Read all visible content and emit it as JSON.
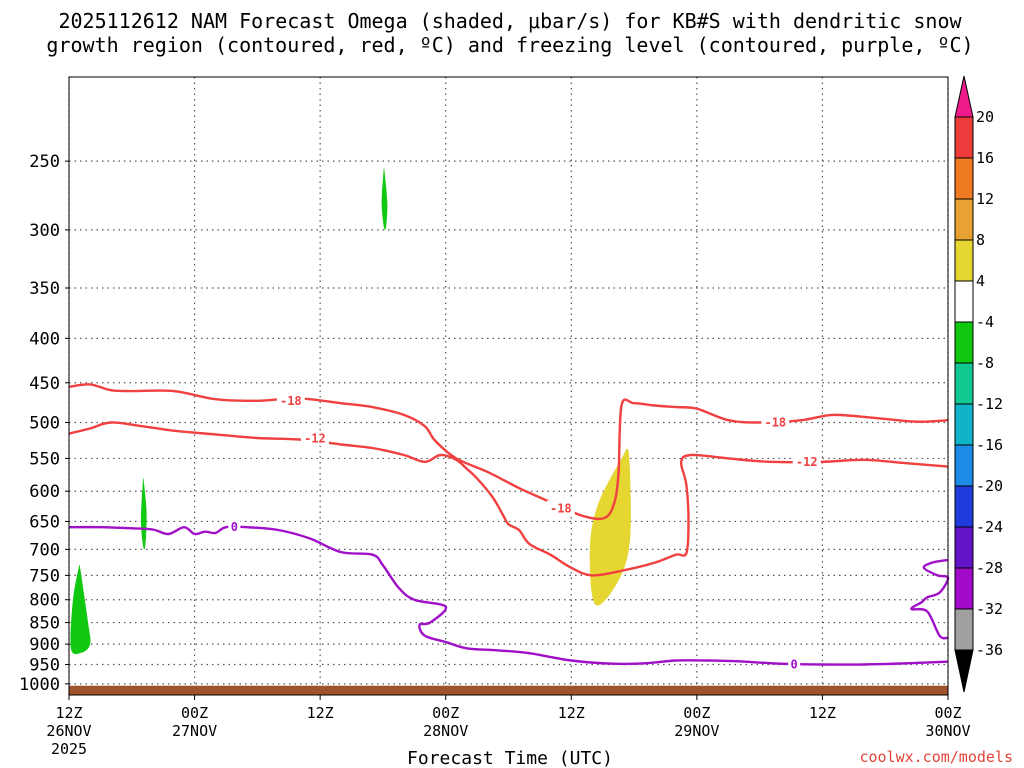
{
  "chart_data": {
    "type": "contour",
    "title_lines": [
      "2025112612 NAM Forecast Omega (shaded, μbar/s) for KB#S with dendritic snow",
      "growth region (contoured, red, ºC) and freezing level (contoured, purple, ºC)"
    ],
    "xlabel": "Forecast Time (UTC)",
    "ylabel": "",
    "y_axis": {
      "ticks": [
        250,
        300,
        350,
        400,
        450,
        500,
        550,
        600,
        650,
        700,
        750,
        800,
        850,
        900,
        950,
        1000
      ],
      "labels": [
        "250",
        "300",
        "350",
        "400",
        "450",
        "500",
        "550",
        "600",
        "650",
        "700",
        "750",
        "800",
        "850",
        "900",
        "950",
        "1000"
      ],
      "scale": "log-pressure",
      "inverted": true,
      "range": [
        200,
        1030
      ]
    },
    "x_axis": {
      "range_hours": [
        0,
        84
      ],
      "ticks": [
        {
          "hour": 0,
          "lines": [
            "12Z",
            "26NOV",
            "2025"
          ]
        },
        {
          "hour": 12,
          "lines": [
            "00Z",
            "27NOV"
          ]
        },
        {
          "hour": 24,
          "lines": [
            "12Z"
          ]
        },
        {
          "hour": 36,
          "lines": [
            "00Z",
            "28NOV"
          ]
        },
        {
          "hour": 48,
          "lines": [
            "12Z"
          ]
        },
        {
          "hour": 60,
          "lines": [
            "00Z",
            "29NOV"
          ]
        },
        {
          "hour": 72,
          "lines": [
            "12Z"
          ]
        },
        {
          "hour": 84,
          "lines": [
            "00Z",
            "30NOV"
          ]
        }
      ]
    },
    "grid": true,
    "colorbar": {
      "labels": [
        "20",
        "16",
        "12",
        "8",
        "4",
        "-4",
        "-8",
        "-12",
        "-16",
        "-20",
        "-24",
        "-28",
        "-32",
        "-36"
      ],
      "colors": [
        "#ee1a8c",
        "#ee3b3b",
        "#ef7a22",
        "#e8a232",
        "#e6d632",
        "#ffffff",
        "#10c810",
        "#10c890",
        "#10b4c8",
        "#1e8ce6",
        "#1e3cdc",
        "#6414c8",
        "#a00ac8",
        "#a0a0a0",
        "#000000"
      ]
    },
    "omega_regions": [
      {
        "color": "#10c810",
        "label": "-4 to -8",
        "points": [
          [
            30.1,
            255
          ],
          [
            30.4,
            280
          ],
          [
            30.2,
            300
          ],
          [
            29.9,
            280
          ]
        ]
      },
      {
        "color": "#10c810",
        "label": "-4 to -8",
        "points": [
          [
            7.1,
            580
          ],
          [
            7.4,
            640
          ],
          [
            7.2,
            700
          ],
          [
            6.9,
            650
          ]
        ]
      },
      {
        "color": "#10c810",
        "label": "-4 to -8",
        "points": [
          [
            1.0,
            730
          ],
          [
            1.8,
            850
          ],
          [
            2.0,
            900
          ],
          [
            1.2,
            920
          ],
          [
            0.2,
            910
          ],
          [
            0.4,
            800
          ]
        ]
      },
      {
        "color": "#e6d632",
        "label": "4 to 8",
        "points": [
          [
            53.0,
            545
          ],
          [
            53.5,
            545
          ],
          [
            53.6,
            680
          ],
          [
            52.5,
            760
          ],
          [
            50.3,
            810
          ],
          [
            49.8,
            700
          ],
          [
            50.6,
            620
          ]
        ]
      }
    ],
    "series": [
      {
        "label": "-18",
        "color": "#f04040",
        "points": [
          [
            0,
            455
          ],
          [
            2,
            452
          ],
          [
            4,
            459
          ],
          [
            6,
            460
          ],
          [
            10,
            460
          ],
          [
            14,
            470
          ],
          [
            18,
            472
          ],
          [
            22,
            469
          ],
          [
            26,
            475
          ],
          [
            29,
            480
          ],
          [
            32,
            490
          ],
          [
            34,
            505
          ],
          [
            35,
            525
          ],
          [
            37,
            550
          ],
          [
            40,
            570
          ],
          [
            43,
            595
          ],
          [
            45,
            610
          ],
          [
            47,
            625
          ],
          [
            49,
            640
          ],
          [
            51,
            645
          ],
          [
            52,
            625
          ],
          [
            52.5,
            575
          ],
          [
            52.8,
            478
          ],
          [
            54,
            475
          ],
          [
            56,
            478
          ],
          [
            58,
            480
          ],
          [
            60,
            482
          ],
          [
            63,
            497
          ],
          [
            66,
            500
          ],
          [
            70,
            497
          ],
          [
            73,
            490
          ],
          [
            77,
            494
          ],
          [
            81,
            499
          ],
          [
            84,
            497
          ]
        ]
      },
      {
        "label": "-12",
        "color": "#f04040",
        "points": [
          [
            0,
            515
          ],
          [
            2,
            508
          ],
          [
            4,
            500
          ],
          [
            7,
            505
          ],
          [
            10,
            511
          ],
          [
            14,
            516
          ],
          [
            18,
            521
          ],
          [
            22,
            523
          ],
          [
            26,
            530
          ],
          [
            29,
            535
          ],
          [
            32,
            545
          ],
          [
            34,
            555
          ],
          [
            35.5,
            545
          ],
          [
            37,
            552
          ],
          [
            38,
            565
          ],
          [
            39,
            580
          ],
          [
            40.5,
            610
          ],
          [
            41.5,
            640
          ],
          [
            42,
            655
          ],
          [
            43,
            665
          ],
          [
            44,
            690
          ],
          [
            46,
            710
          ],
          [
            48,
            735
          ],
          [
            50,
            750
          ],
          [
            53,
            740
          ],
          [
            56,
            725
          ],
          [
            58,
            710
          ],
          [
            59,
            707
          ],
          [
            59.2,
            650
          ],
          [
            59,
            590
          ],
          [
            58.5,
            555
          ],
          [
            59.5,
            545
          ],
          [
            63,
            550
          ],
          [
            67,
            555
          ],
          [
            72,
            555
          ],
          [
            76,
            552
          ],
          [
            80,
            557
          ],
          [
            84,
            562
          ]
        ]
      },
      {
        "label": "0",
        "color": "#a010c8",
        "points": [
          [
            0,
            660
          ],
          [
            3,
            660
          ],
          [
            6,
            662
          ],
          [
            8,
            664
          ],
          [
            9.5,
            672
          ],
          [
            11,
            660
          ],
          [
            12,
            672
          ],
          [
            13,
            668
          ],
          [
            14,
            670
          ],
          [
            15,
            660
          ],
          [
            17,
            660
          ],
          [
            20,
            665
          ],
          [
            23,
            680
          ],
          [
            26,
            705
          ],
          [
            29,
            710
          ],
          [
            30,
            730
          ],
          [
            31.5,
            775
          ],
          [
            33,
            800
          ],
          [
            36,
            815
          ],
          [
            34.5,
            850
          ],
          [
            33.5,
            855
          ],
          [
            34,
            880
          ],
          [
            36,
            895
          ],
          [
            38,
            910
          ],
          [
            41,
            915
          ],
          [
            44,
            922
          ],
          [
            48,
            940
          ],
          [
            52,
            948
          ],
          [
            55,
            947
          ],
          [
            58,
            940
          ],
          [
            61,
            940
          ],
          [
            64,
            942
          ],
          [
            68,
            948
          ],
          [
            72,
            950
          ],
          [
            76,
            950
          ],
          [
            80,
            947
          ],
          [
            84,
            943
          ]
        ]
      },
      {
        "label": "0",
        "color": "#a010c8",
        "points": [
          [
            84,
            720
          ],
          [
            82.5,
            725
          ],
          [
            81.7,
            735
          ],
          [
            83,
            750
          ],
          [
            84,
            755
          ],
          [
            83.2,
            785
          ],
          [
            82,
            795
          ],
          [
            81.5,
            805
          ],
          [
            80.5,
            820
          ],
          [
            82,
            825
          ],
          [
            83.2,
            880
          ],
          [
            84,
            885
          ]
        ]
      }
    ],
    "contour_labels": [
      {
        "text": "-18",
        "x": 21.2,
        "y": 472,
        "color": "#f04040"
      },
      {
        "text": "-12",
        "x": 23.5,
        "y": 522,
        "color": "#f04040"
      },
      {
        "text": "-18",
        "x": 47,
        "y": 628,
        "color": "#f04040"
      },
      {
        "text": "-18",
        "x": 67.5,
        "y": 500,
        "color": "#f04040"
      },
      {
        "text": "-12",
        "x": 70.5,
        "y": 555,
        "color": "#f04040"
      },
      {
        "text": "0",
        "x": 15.8,
        "y": 660,
        "color": "#a010c8"
      },
      {
        "text": "0",
        "x": 69.3,
        "y": 950,
        "color": "#a010c8"
      }
    ],
    "surface": {
      "color": "#a0522d",
      "label": "terrain"
    }
  },
  "credit": "coolwx.com/models"
}
